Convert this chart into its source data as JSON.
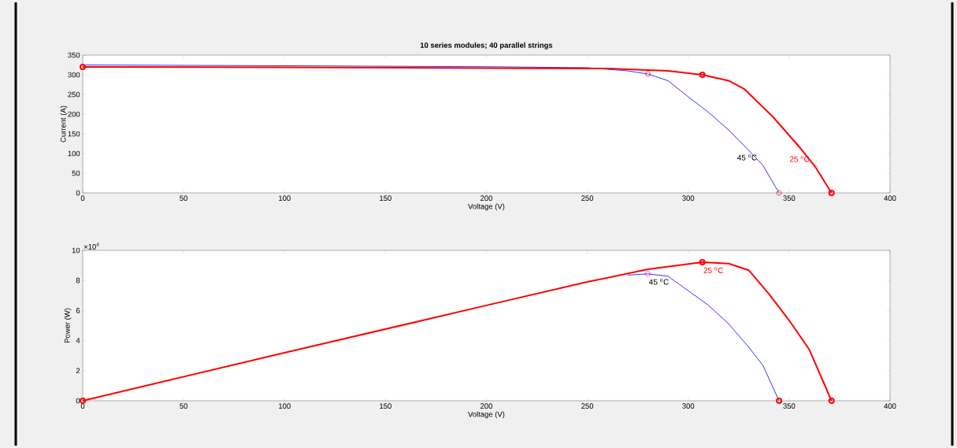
{
  "chart_data": [
    {
      "type": "line",
      "title": "10 series modules; 40 parallel strings",
      "xlabel": "Voltage (V)",
      "ylabel": "Current (A)",
      "xlim": [
        0,
        400
      ],
      "xticks": [
        0,
        50,
        100,
        150,
        200,
        250,
        300,
        350,
        400
      ],
      "ylim": [
        0,
        350
      ],
      "yticks": [
        0,
        50,
        100,
        150,
        200,
        250,
        300,
        350
      ],
      "series": [
        {
          "color": "#0000ff",
          "x": [
            0,
            100,
            200,
            250,
            270,
            280,
            290,
            300,
            310,
            320,
            330,
            337,
            345
          ],
          "values": [
            325,
            323,
            320.5,
            318,
            310,
            302,
            285,
            244,
            205,
            160,
            108,
            70,
            0
          ]
        },
        {
          "color": "#ff0000",
          "x": [
            0,
            100,
            200,
            260,
            290,
            307,
            320,
            328,
            342,
            355,
            363,
            371
          ],
          "values": [
            320,
            319,
            317,
            316,
            310,
            300,
            285,
            263,
            193,
            117,
            66,
            0
          ]
        },
        {
          "type": "scatter",
          "marker": "circle",
          "color": "#ff0000",
          "x": [
            280,
            345
          ],
          "values": [
            302,
            0
          ]
        },
        {
          "type": "scatter",
          "marker": "circle",
          "color": "#ff0000",
          "x": [
            0,
            307,
            371
          ],
          "values": [
            320,
            300,
            0
          ]
        }
      ],
      "annotations": [
        {
          "text": "45 $^{o}$C",
          "x": 337,
          "y": 70
        },
        {
          "text": "25 $^{o}$C",
          "x": 363,
          "y": 66
        }
      ]
    },
    {
      "type": "line",
      "xlabel": "Voltage (V)",
      "ylabel": "Power (W)",
      "xlim": [
        0,
        400
      ],
      "xticks": [
        0,
        50,
        100,
        150,
        200,
        250,
        300,
        350,
        400
      ],
      "ylim": [
        0,
        10
      ],
      "yticks": [
        0,
        2,
        4,
        6,
        8,
        10
      ],
      "series": [
        {
          "color": "#0000ff",
          "x": [
            270,
            280,
            290,
            300,
            310,
            320,
            330,
            337,
            345
          ],
          "values": [
            8.35,
            8.44,
            8.28,
            7.32,
            6.35,
            5.12,
            3.56,
            2.36,
            0
          ]
        },
        {
          "color": "#ff0000",
          "x": [
            0,
            100,
            200,
            250,
            280,
            307,
            320,
            330,
            340,
            350,
            360,
            371
          ],
          "values": [
            0,
            3.19,
            6.34,
            7.9,
            8.74,
            9.21,
            9.12,
            8.68,
            7.1,
            5.35,
            3.4,
            0
          ]
        },
        {
          "type": "scatter",
          "marker": "circle",
          "color": "#ff00ff",
          "x": [
            280
          ],
          "values": [
            8.44
          ]
        },
        {
          "type": "scatter",
          "marker": "circle",
          "color": "#ff0000",
          "x": [
            345
          ],
          "values": [
            0
          ]
        },
        {
          "type": "scatter",
          "marker": "circle",
          "color": "#ff0000",
          "x": [
            0,
            307,
            371
          ],
          "values": [
            0,
            9.21,
            0
          ]
        }
      ],
      "annotations": [
        "×10$^{4}$",
        {
          "text": "45 $^{o}$C",
          "x": 280,
          "y": 8.44
        },
        {
          "text": "25 $^{o}$C",
          "x": 307,
          "y": 9.21
        }
      ]
    }
  ]
}
